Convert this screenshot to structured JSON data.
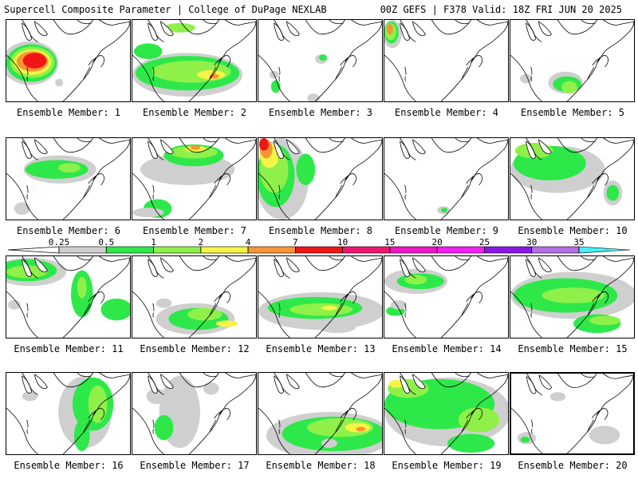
{
  "header": {
    "title": "Supercell Composite Parameter | College of DuPage NEXLAB",
    "valid": "00Z GEFS | F378 Valid: 18Z FRI JUN 20 2025"
  },
  "colorbar": {
    "ticks": [
      "0.25",
      "0.5",
      "1",
      "2",
      "4",
      "7",
      "10",
      "15",
      "20",
      "25",
      "30",
      "35"
    ],
    "colors": [
      "#cfcfcf",
      "#2ee84a",
      "#8ff04a",
      "#f5f546",
      "#f79633",
      "#f01616",
      "#f0166e",
      "#f016c8",
      "#f51cf5",
      "#8c16e6",
      "#b46ee6",
      "#46f0f5"
    ]
  },
  "members": [
    {
      "label": "Ensemble Member: 1"
    },
    {
      "label": "Ensemble Member: 2"
    },
    {
      "label": "Ensemble Member: 3"
    },
    {
      "label": "Ensemble Member: 4"
    },
    {
      "label": "Ensemble Member: 5"
    },
    {
      "label": "Ensemble Member: 6"
    },
    {
      "label": "Ensemble Member: 7"
    },
    {
      "label": "Ensemble Member: 8"
    },
    {
      "label": "Ensemble Member: 9"
    },
    {
      "label": "Ensemble Member: 10"
    },
    {
      "label": "Ensemble Member: 11"
    },
    {
      "label": "Ensemble Member: 12"
    },
    {
      "label": "Ensemble Member: 13"
    },
    {
      "label": "Ensemble Member: 14"
    },
    {
      "label": "Ensemble Member: 15"
    },
    {
      "label": "Ensemble Member: 16"
    },
    {
      "label": "Ensemble Member: 17"
    },
    {
      "label": "Ensemble Member: 18"
    },
    {
      "label": "Ensemble Member: 19"
    },
    {
      "label": "Ensemble Member: 20"
    }
  ]
}
